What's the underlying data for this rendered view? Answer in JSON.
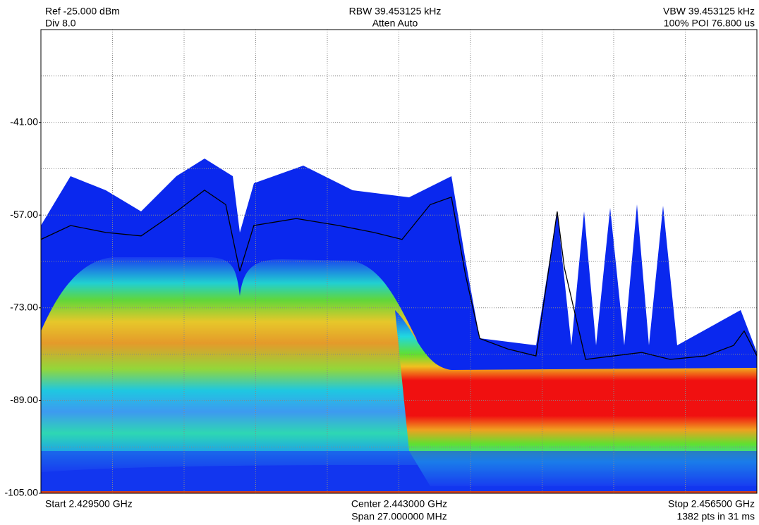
{
  "chart_data": {
    "type": "line",
    "header": {
      "ref": "Ref -25.000 dBm",
      "div": "Div 8.0",
      "rbw": "RBW 39.453125 kHz",
      "atten": "Atten Auto",
      "vbw": "VBW 39.453125 kHz",
      "poi": "100% POI 76.800 us"
    },
    "footer": {
      "start": "Start 2.429500 GHz",
      "center": "Center 2.443000 GHz",
      "span": "Span 27.000000 MHz",
      "stop": "Stop 2.456500 GHz",
      "points": "1382 pts in 31 ms"
    },
    "xlim": [
      2.4295,
      2.4565
    ],
    "ylim": [
      -105,
      -25
    ],
    "yticks": [
      {
        "value": -41,
        "label": "-41.00"
      },
      {
        "value": -57,
        "label": "-57.00"
      },
      {
        "value": -73,
        "label": "-73.00"
      },
      {
        "value": -89,
        "label": "-89.00"
      },
      {
        "value": -105,
        "label": "-105.00"
      }
    ],
    "grid": true,
    "series": [
      {
        "color": "#000000",
        "x": [
          2.4295,
          2.43062,
          2.43195,
          2.43328,
          2.43461,
          2.43567,
          2.43647,
          2.437,
          2.43753,
          2.43913,
          2.44073,
          2.44206,
          2.44312,
          2.44418,
          2.44498,
          2.44551,
          2.44605,
          2.44711,
          2.44817,
          2.44897,
          2.44924,
          2.45004,
          2.4511,
          2.45216,
          2.45323,
          2.45456,
          2.45562,
          2.45602,
          2.4565
        ],
        "values": [
          -61.2,
          -58.8,
          -60,
          -60.6,
          -56.4,
          -52.7,
          -55.2,
          -66.7,
          -58.8,
          -57.6,
          -58.8,
          -60,
          -61.2,
          -55.2,
          -53.9,
          -67.3,
          -78.3,
          -80.1,
          -81.3,
          -56.4,
          -66.1,
          -81.9,
          -81.3,
          -80.7,
          -81.9,
          -81.3,
          -79.5,
          -77,
          -81.3
        ]
      }
    ]
  }
}
